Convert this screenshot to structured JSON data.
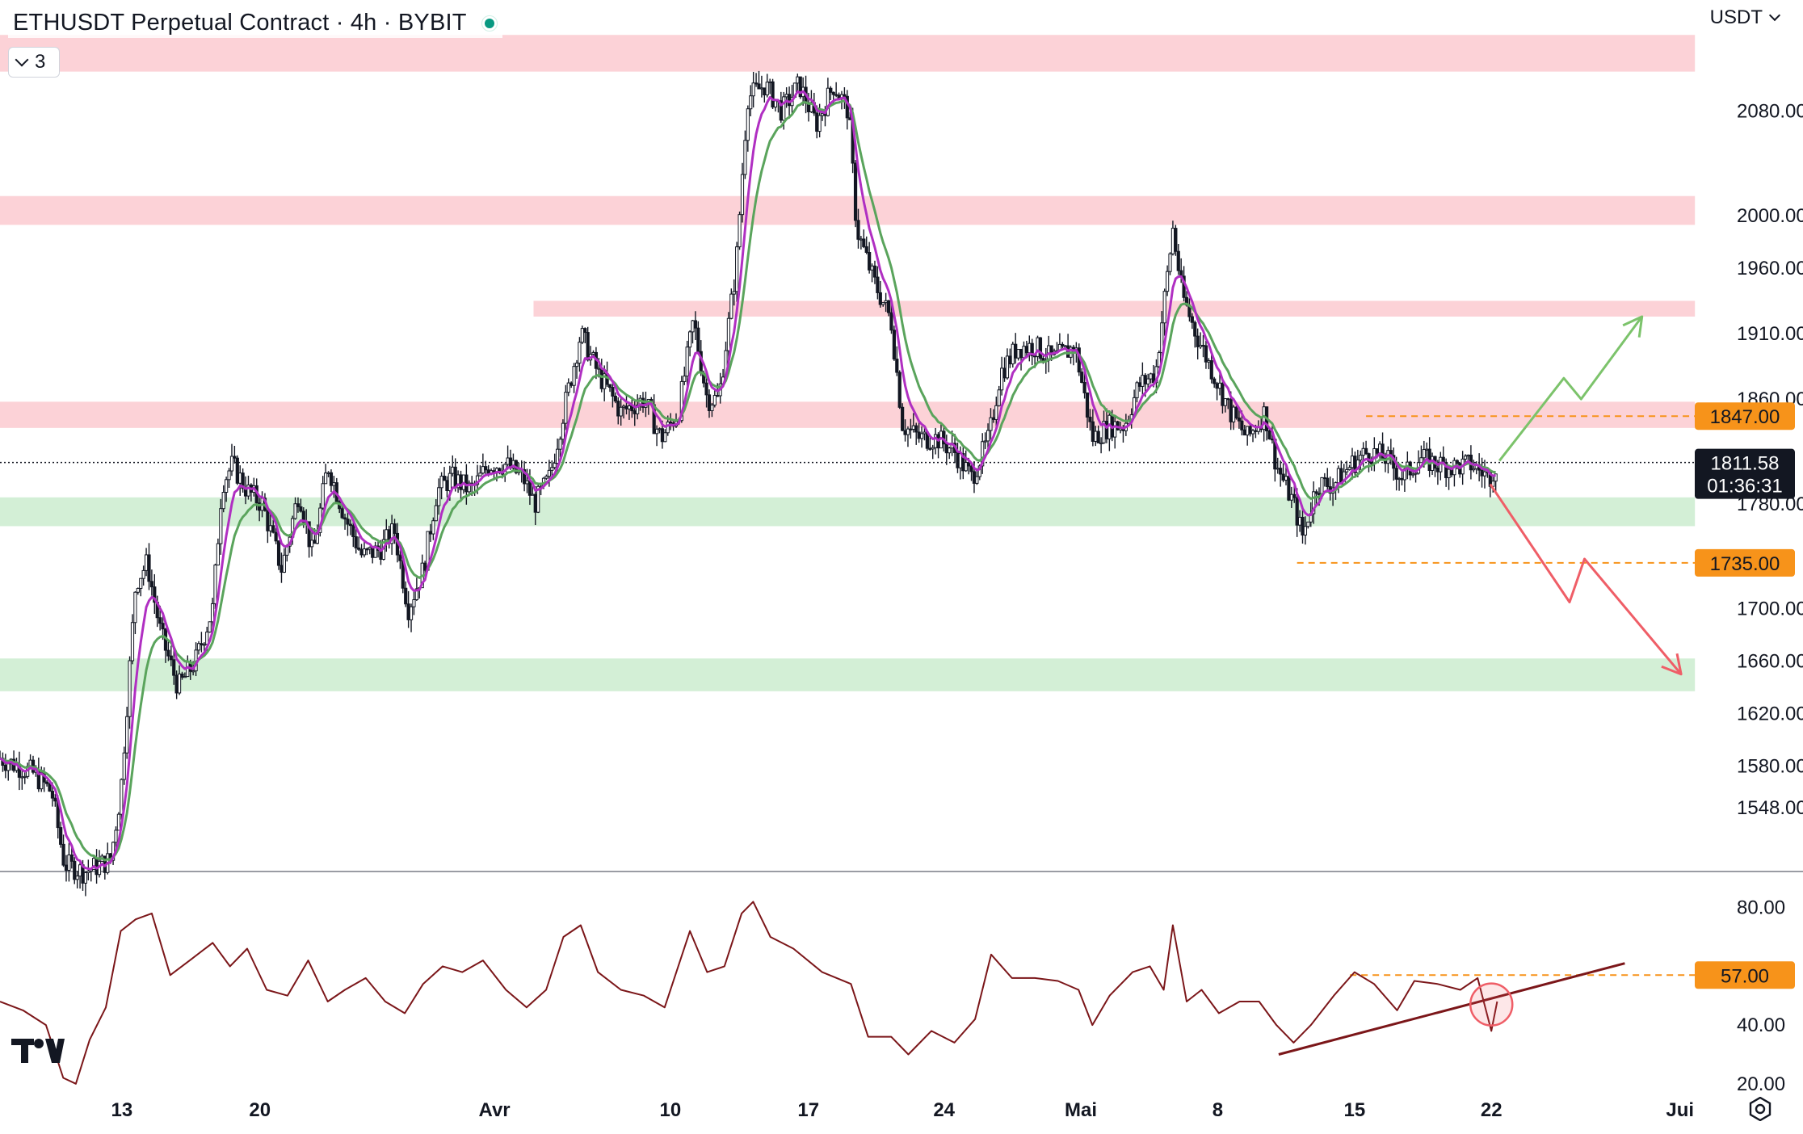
{
  "header": {
    "title": "ETHUSDT Perpetual Contract · 4h · BYBIT",
    "indicator_count": "3",
    "currency": "USDT"
  },
  "colors": {
    "resistance_zone": "#fcd2d7",
    "support_zone": "#d3efd6",
    "ema_fast": "#b02fc2",
    "ema_slow": "#5aa45c",
    "rsi_line": "#7b1619",
    "level_orange": "#f7931a",
    "arrow_up": "#7cc36b",
    "arrow_down": "#ef5e67"
  },
  "chart_data": {
    "type": "candlestick",
    "price_ylim": [
      1500,
      2140
    ],
    "price_ticks": [
      "2080.00",
      "2000.00",
      "1960.00",
      "1910.00",
      "1860.00",
      "1780.00",
      "1700.00",
      "1660.00",
      "1620.00",
      "1580.00",
      "1548.00"
    ],
    "x_labels": [
      "13",
      "20",
      "Avr",
      "10",
      "17",
      "24",
      "Mai",
      "8",
      "15",
      "22",
      "Jui"
    ],
    "last_price": {
      "value": "1811.58",
      "countdown": "01:36:31"
    },
    "marked_levels": [
      {
        "label": "1847.00",
        "price": 1847
      },
      {
        "label": "1735.00",
        "price": 1735
      }
    ],
    "resistance_zones": [
      [
        2110,
        2138
      ],
      [
        1993,
        2015
      ],
      [
        1923,
        1935
      ],
      [
        1838,
        1858
      ]
    ],
    "support_zones": [
      [
        1763,
        1785
      ],
      [
        1637,
        1662
      ]
    ],
    "price_path": [
      [
        0,
        1586
      ],
      [
        28,
        1575
      ],
      [
        45,
        1560
      ],
      [
        56,
        1505
      ],
      [
        73,
        1499
      ],
      [
        96,
        1508
      ],
      [
        105,
        1560
      ],
      [
        118,
        1720
      ],
      [
        128,
        1735
      ],
      [
        140,
        1680
      ],
      [
        155,
        1640
      ],
      [
        170,
        1660
      ],
      [
        185,
        1700
      ],
      [
        193,
        1795
      ],
      [
        202,
        1810
      ],
      [
        215,
        1790
      ],
      [
        228,
        1780
      ],
      [
        245,
        1730
      ],
      [
        260,
        1790
      ],
      [
        272,
        1740
      ],
      [
        285,
        1810
      ],
      [
        300,
        1770
      ],
      [
        315,
        1740
      ],
      [
        330,
        1745
      ],
      [
        343,
        1760
      ],
      [
        355,
        1700
      ],
      [
        368,
        1730
      ],
      [
        380,
        1790
      ],
      [
        393,
        1800
      ],
      [
        410,
        1790
      ],
      [
        425,
        1810
      ],
      [
        440,
        1810
      ],
      [
        455,
        1800
      ],
      [
        465,
        1780
      ],
      [
        478,
        1800
      ],
      [
        490,
        1850
      ],
      [
        505,
        1910
      ],
      [
        520,
        1880
      ],
      [
        540,
        1850
      ],
      [
        560,
        1860
      ],
      [
        575,
        1830
      ],
      [
        590,
        1850
      ],
      [
        603,
        1920
      ],
      [
        615,
        1860
      ],
      [
        625,
        1860
      ],
      [
        640,
        1960
      ],
      [
        650,
        2090
      ],
      [
        665,
        2100
      ],
      [
        680,
        2080
      ],
      [
        695,
        2100
      ],
      [
        710,
        2070
      ],
      [
        725,
        2100
      ],
      [
        738,
        2080
      ],
      [
        745,
        1990
      ],
      [
        760,
        1950
      ],
      [
        775,
        1920
      ],
      [
        785,
        1840
      ],
      [
        800,
        1830
      ],
      [
        815,
        1830
      ],
      [
        830,
        1820
      ],
      [
        845,
        1800
      ],
      [
        860,
        1830
      ],
      [
        870,
        1880
      ],
      [
        885,
        1900
      ],
      [
        900,
        1900
      ],
      [
        915,
        1890
      ],
      [
        935,
        1900
      ],
      [
        950,
        1830
      ],
      [
        965,
        1840
      ],
      [
        978,
        1840
      ],
      [
        990,
        1870
      ],
      [
        1005,
        1880
      ],
      [
        1020,
        1990
      ],
      [
        1028,
        1940
      ],
      [
        1040,
        1910
      ],
      [
        1055,
        1880
      ],
      [
        1070,
        1850
      ],
      [
        1085,
        1830
      ],
      [
        1100,
        1850
      ],
      [
        1110,
        1810
      ],
      [
        1125,
        1780
      ],
      [
        1133,
        1755
      ],
      [
        1145,
        1795
      ],
      [
        1160,
        1795
      ],
      [
        1175,
        1810
      ],
      [
        1190,
        1820
      ],
      [
        1205,
        1815
      ],
      [
        1220,
        1800
      ],
      [
        1235,
        1815
      ],
      [
        1250,
        1810
      ],
      [
        1265,
        1808
      ],
      [
        1280,
        1810
      ],
      [
        1295,
        1800
      ],
      [
        1302,
        1811.58
      ]
    ],
    "projection_up": [
      [
        1304,
        1813
      ],
      [
        1360,
        1876
      ],
      [
        1375,
        1860
      ],
      [
        1428,
        1923
      ]
    ],
    "projection_down": [
      [
        1296,
        1795
      ],
      [
        1365,
        1705
      ],
      [
        1378,
        1738
      ],
      [
        1462,
        1650
      ]
    ],
    "rsi": {
      "ylim": [
        15,
        92
      ],
      "ticks": [
        "80.00",
        "40.00",
        "20.00"
      ],
      "marked_level": {
        "label": "57.00",
        "value": 57
      },
      "trendline": [
        [
          1112,
          30
        ],
        [
          1413,
          61
        ]
      ],
      "circle_at": [
        1297,
        47
      ],
      "path": [
        [
          0,
          48
        ],
        [
          20,
          45
        ],
        [
          40,
          40
        ],
        [
          55,
          22
        ],
        [
          66,
          20
        ],
        [
          78,
          35
        ],
        [
          92,
          46
        ],
        [
          105,
          72
        ],
        [
          118,
          76
        ],
        [
          132,
          78
        ],
        [
          148,
          57
        ],
        [
          165,
          62
        ],
        [
          185,
          68
        ],
        [
          200,
          60
        ],
        [
          215,
          66
        ],
        [
          232,
          52
        ],
        [
          250,
          50
        ],
        [
          268,
          62
        ],
        [
          285,
          48
        ],
        [
          300,
          52
        ],
        [
          318,
          56
        ],
        [
          335,
          48
        ],
        [
          352,
          44
        ],
        [
          368,
          54
        ],
        [
          385,
          60
        ],
        [
          402,
          58
        ],
        [
          420,
          62
        ],
        [
          440,
          52
        ],
        [
          458,
          46
        ],
        [
          475,
          52
        ],
        [
          490,
          70
        ],
        [
          505,
          74
        ],
        [
          520,
          58
        ],
        [
          540,
          52
        ],
        [
          560,
          50
        ],
        [
          578,
          46
        ],
        [
          600,
          72
        ],
        [
          615,
          58
        ],
        [
          630,
          60
        ],
        [
          645,
          78
        ],
        [
          655,
          82
        ],
        [
          670,
          70
        ],
        [
          690,
          66
        ],
        [
          715,
          58
        ],
        [
          740,
          54
        ],
        [
          755,
          36
        ],
        [
          775,
          36
        ],
        [
          790,
          30
        ],
        [
          810,
          38
        ],
        [
          830,
          34
        ],
        [
          848,
          42
        ],
        [
          862,
          64
        ],
        [
          880,
          56
        ],
        [
          900,
          56
        ],
        [
          920,
          55
        ],
        [
          938,
          52
        ],
        [
          950,
          40
        ],
        [
          965,
          50
        ],
        [
          985,
          58
        ],
        [
          1000,
          60
        ],
        [
          1012,
          52
        ],
        [
          1020,
          74
        ],
        [
          1032,
          48
        ],
        [
          1045,
          52
        ],
        [
          1060,
          44
        ],
        [
          1078,
          48
        ],
        [
          1095,
          48
        ],
        [
          1110,
          40
        ],
        [
          1125,
          34
        ],
        [
          1140,
          40
        ],
        [
          1160,
          50
        ],
        [
          1178,
          58
        ],
        [
          1195,
          54
        ],
        [
          1215,
          45
        ],
        [
          1230,
          55
        ],
        [
          1250,
          54
        ],
        [
          1270,
          52
        ],
        [
          1285,
          56
        ],
        [
          1297,
          38
        ],
        [
          1302,
          48
        ]
      ]
    }
  }
}
